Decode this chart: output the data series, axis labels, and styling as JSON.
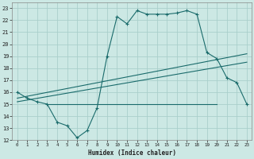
{
  "xlabel": "Humidex (Indice chaleur)",
  "background_color": "#cce8e4",
  "grid_color": "#aacfcb",
  "line_color": "#1a6b6b",
  "xlim": [
    -0.5,
    23.5
  ],
  "ylim": [
    12,
    23.5
  ],
  "xticks": [
    0,
    1,
    2,
    3,
    4,
    5,
    6,
    7,
    8,
    9,
    10,
    11,
    12,
    13,
    14,
    15,
    16,
    17,
    18,
    19,
    20,
    21,
    22,
    23
  ],
  "yticks": [
    12,
    13,
    14,
    15,
    16,
    17,
    18,
    19,
    20,
    21,
    22,
    23
  ],
  "curve1_x": [
    0,
    1,
    2,
    3,
    4,
    5,
    6,
    7,
    8,
    9,
    10,
    11,
    12,
    13,
    14,
    15,
    16,
    17,
    18,
    19,
    20,
    21,
    22,
    23
  ],
  "curve1_y": [
    16.0,
    15.5,
    15.2,
    15.0,
    13.5,
    13.2,
    12.2,
    12.8,
    14.7,
    19.0,
    22.3,
    21.7,
    22.8,
    22.5,
    22.5,
    22.5,
    22.6,
    22.8,
    22.5,
    19.3,
    18.8,
    17.2,
    16.8,
    15.0
  ],
  "curve2_x": [
    0,
    23
  ],
  "curve2_y": [
    15.5,
    19.2
  ],
  "curve3_x": [
    0,
    23
  ],
  "curve3_y": [
    15.2,
    18.5
  ],
  "curve4_x": [
    3,
    20
  ],
  "curve4_y": [
    15.0,
    15.0
  ]
}
